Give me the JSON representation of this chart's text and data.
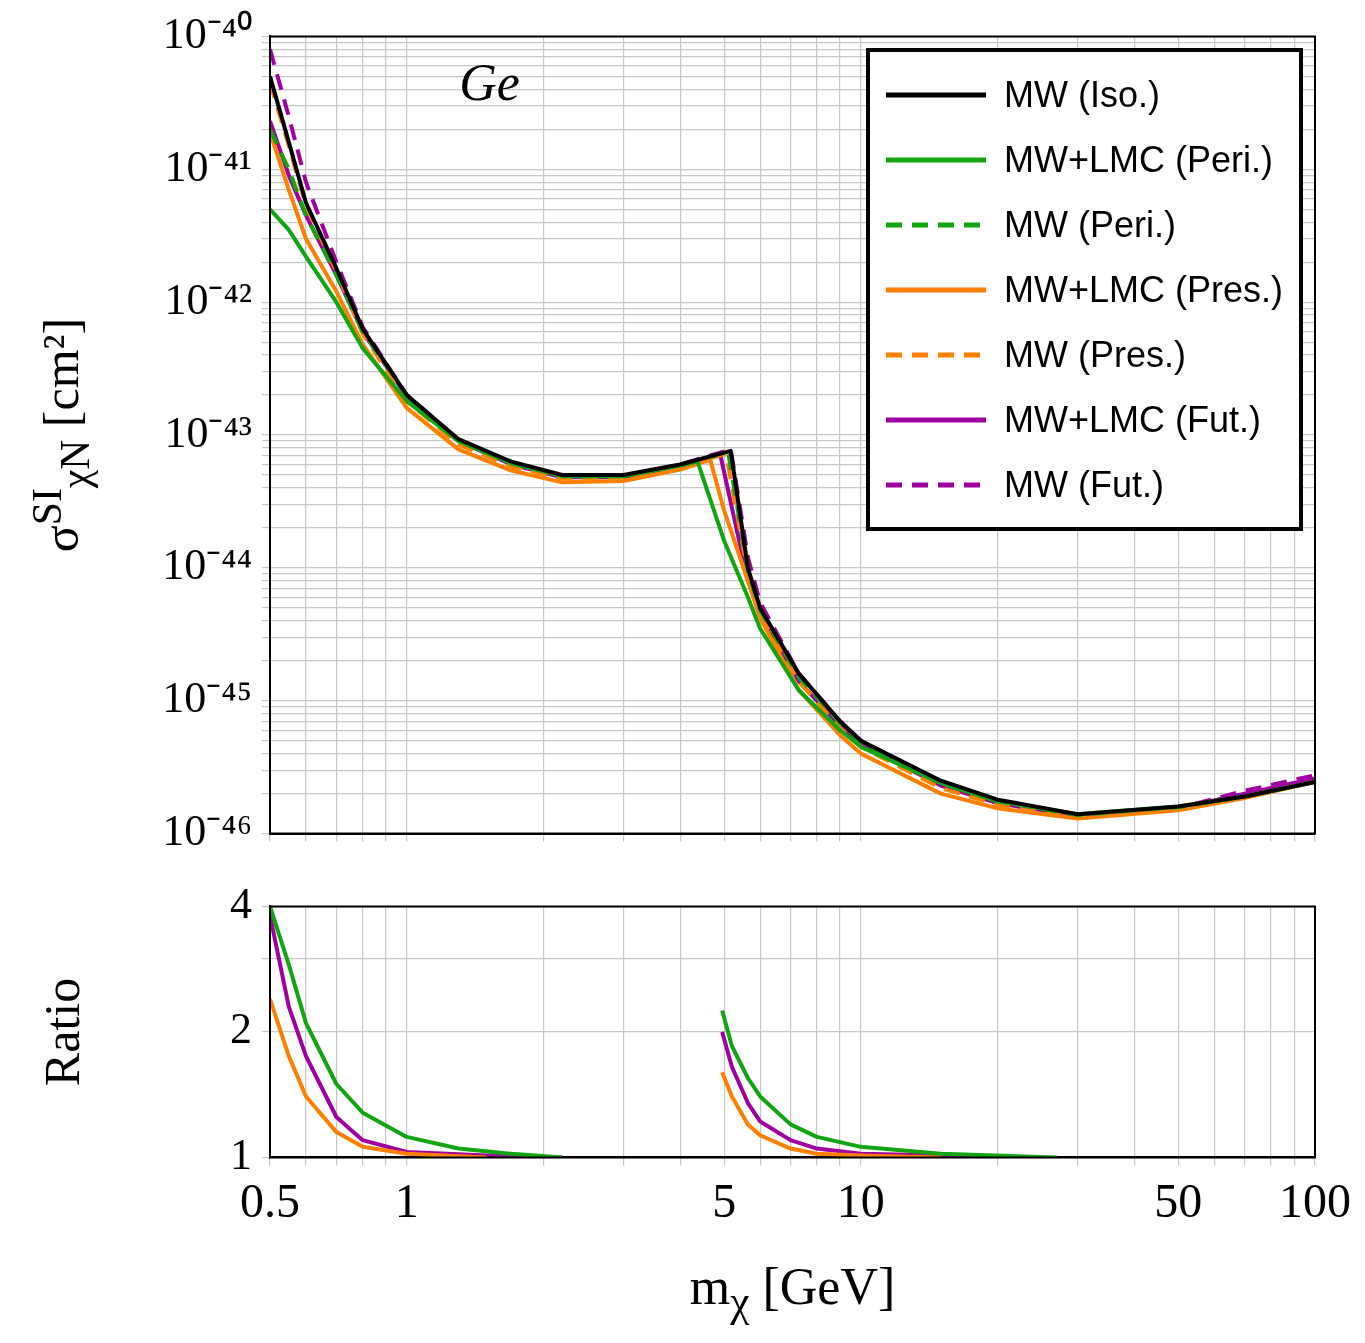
{
  "chart_data": [
    {
      "type": "line",
      "annotations": [
        "Ge"
      ],
      "ylabel": "σ$^{SI}$$_{χN}$ [cm²]",
      "log": "xy",
      "xlim": [
        0.5,
        100
      ],
      "ylim": [
        1e-46,
        1e-40
      ],
      "xticks": [
        0.5,
        {
          "value": 0.6,
          "label": null
        },
        {
          "value": 0.7,
          "label": null
        },
        {
          "value": 0.8,
          "label": null
        },
        {
          "value": 0.9,
          "label": null
        },
        1,
        {
          "value": 2,
          "label": null
        },
        {
          "value": 3,
          "label": null
        },
        {
          "value": 4,
          "label": null
        },
        5,
        {
          "value": 6,
          "label": null
        },
        {
          "value": 7,
          "label": null
        },
        {
          "value": 8,
          "label": null
        },
        {
          "value": 9,
          "label": null
        },
        10,
        {
          "value": 20,
          "label": null
        },
        {
          "value": 30,
          "label": null
        },
        {
          "value": 40,
          "label": null
        },
        50,
        {
          "value": 60,
          "label": null
        },
        {
          "value": 70,
          "label": null
        },
        {
          "value": 80,
          "label": null
        },
        {
          "value": 90,
          "label": null
        },
        100
      ],
      "yticks": [
        {
          "value": 1e-46,
          "label": "10⁻⁴⁶"
        },
        {
          "value": 2e-46,
          "label": null
        },
        {
          "value": 3e-46,
          "label": null
        },
        {
          "value": 4e-46,
          "label": null
        },
        {
          "value": 5e-46,
          "label": null
        },
        {
          "value": 6e-46,
          "label": null
        },
        {
          "value": 7e-46,
          "label": null
        },
        {
          "value": 8e-46,
          "label": null
        },
        {
          "value": 9e-46,
          "label": null
        },
        {
          "value": 1e-45,
          "label": "10⁻⁴⁵"
        },
        {
          "value": 2e-45,
          "label": null
        },
        {
          "value": 3e-45,
          "label": null
        },
        {
          "value": 4e-45,
          "label": null
        },
        {
          "value": 5e-45,
          "label": null
        },
        {
          "value": 6e-45,
          "label": null
        },
        {
          "value": 7e-45,
          "label": null
        },
        {
          "value": 8e-45,
          "label": null
        },
        {
          "value": 9e-45,
          "label": null
        },
        {
          "value": 1e-44,
          "label": "10⁻⁴⁴"
        },
        {
          "value": 2e-44,
          "label": null
        },
        {
          "value": 3e-44,
          "label": null
        },
        {
          "value": 4e-44,
          "label": null
        },
        {
          "value": 5e-44,
          "label": null
        },
        {
          "value": 6e-44,
          "label": null
        },
        {
          "value": 7e-44,
          "label": null
        },
        {
          "value": 8e-44,
          "label": null
        },
        {
          "value": 9e-44,
          "label": null
        },
        {
          "value": 1e-43,
          "label": "10⁻⁴³"
        },
        {
          "value": 2e-43,
          "label": null
        },
        {
          "value": 3e-43,
          "label": null
        },
        {
          "value": 4e-43,
          "label": null
        },
        {
          "value": 5e-43,
          "label": null
        },
        {
          "value": 6e-43,
          "label": null
        },
        {
          "value": 7e-43,
          "label": null
        },
        {
          "value": 8e-43,
          "label": null
        },
        {
          "value": 9e-43,
          "label": null
        },
        {
          "value": 1e-42,
          "label": "10⁻⁴²"
        },
        {
          "value": 2e-42,
          "label": null
        },
        {
          "value": 3e-42,
          "label": null
        },
        {
          "value": 4e-42,
          "label": null
        },
        {
          "value": 5e-42,
          "label": null
        },
        {
          "value": 6e-42,
          "label": null
        },
        {
          "value": 7e-42,
          "label": null
        },
        {
          "value": 8e-42,
          "label": null
        },
        {
          "value": 9e-42,
          "label": null
        },
        {
          "value": 1e-41,
          "label": "10⁻⁴¹"
        },
        {
          "value": 2e-41,
          "label": null
        },
        {
          "value": 3e-41,
          "label": null
        },
        {
          "value": 4e-41,
          "label": null
        },
        {
          "value": 5e-41,
          "label": null
        },
        {
          "value": 6e-41,
          "label": null
        },
        {
          "value": 7e-41,
          "label": null
        },
        {
          "value": 8e-41,
          "label": null
        },
        {
          "value": 9e-41,
          "label": null
        },
        {
          "value": 1e-40,
          "label": "10⁻⁴⁰"
        }
      ],
      "tick_labels": "y",
      "grid": true,
      "legend": "top right",
      "marker": "none",
      "series": [
        {
          "name": "MW (Iso.)",
          "color": "#000000",
          "line_style": "solid",
          "x": [
            0.5,
            0.55,
            0.6,
            0.7,
            0.8,
            1,
            1.3,
            1.7,
            2.2,
            3,
            4,
            5.17,
            5.64,
            6,
            7.3,
            9,
            10,
            15,
            20,
            30,
            50,
            70,
            100
          ],
          "values": [
            5e-41,
            1.6e-41,
            5.6e-42,
            1.8e-42,
            6.3e-43,
            2e-43,
            9.3e-44,
            6.3e-44,
            5e-44,
            5e-44,
            6e-44,
            7.6e-44,
            1e-44,
            5e-45,
            1.6e-45,
            7e-46,
            5e-46,
            2.5e-46,
            1.8e-46,
            1.4e-46,
            1.6e-46,
            1.9e-46,
            2.45e-46
          ]
        },
        {
          "name": "MW+LMC (Peri.)",
          "color": "#12a512",
          "line_style": "solid",
          "x": [
            0.5,
            0.55,
            0.6,
            0.7,
            0.8,
            1,
            1.3,
            1.7,
            2.2,
            3,
            4,
            4.37,
            5,
            5.64,
            6,
            7.3,
            9,
            10,
            15,
            20,
            30,
            50,
            70,
            100
          ],
          "values": [
            5e-42,
            3.5e-42,
            2.2e-42,
            1e-42,
            4.5e-43,
            1.8e-43,
            9e-44,
            6.1e-44,
            4.9e-44,
            4.9e-44,
            5.9e-44,
            6.3e-44,
            1.6e-44,
            6e-45,
            3.5e-45,
            1.2e-45,
            6e-46,
            4.5e-46,
            2.4e-46,
            1.75e-46,
            1.4e-46,
            1.6e-46,
            1.9e-46,
            2.45e-46
          ]
        },
        {
          "name": "MW (Peri.)",
          "color": "#12a512",
          "line_style": "dashed",
          "x": [
            0.5,
            0.55,
            0.6,
            0.7,
            0.8,
            1,
            1.3,
            1.7,
            2.2,
            3,
            4,
            5.1,
            5.64,
            6,
            7.3,
            9,
            10,
            15,
            20,
            30,
            50,
            70,
            100
          ],
          "values": [
            2e-41,
            1e-41,
            4.5e-42,
            1.6e-42,
            6e-43,
            2e-43,
            9.2e-44,
            6.2e-44,
            4.9e-44,
            4.9e-44,
            5.9e-44,
            7.5e-44,
            9.5e-45,
            4.8e-45,
            1.5e-45,
            6.8e-46,
            4.9e-46,
            2.45e-46,
            1.75e-46,
            1.38e-46,
            1.58e-46,
            1.9e-46,
            2.45e-46
          ]
        },
        {
          "name": "MW+LMC (Pres.)",
          "color": "#ff8000",
          "line_style": "solid",
          "x": [
            0.5,
            0.55,
            0.6,
            0.7,
            0.8,
            1,
            1.3,
            1.7,
            2.2,
            3,
            4,
            4.66,
            5,
            5.64,
            6,
            7.3,
            9,
            10,
            15,
            20,
            30,
            50,
            70,
            100
          ],
          "values": [
            1.9e-41,
            7e-42,
            3e-42,
            1.2e-42,
            4.8e-43,
            1.6e-43,
            7.8e-44,
            5.4e-44,
            4.4e-44,
            4.5e-44,
            5.5e-44,
            6.5e-44,
            2.7e-44,
            8e-45,
            4.2e-45,
            1.2e-45,
            5.5e-46,
            4e-46,
            2e-46,
            1.55e-46,
            1.3e-46,
            1.5e-46,
            1.85e-46,
            2.45e-46
          ]
        },
        {
          "name": "MW (Pres.)",
          "color": "#ff8000",
          "line_style": "dashed",
          "x": [
            0.5,
            0.55,
            0.6,
            0.7,
            0.8,
            1,
            1.3,
            1.7,
            2.2,
            3,
            4,
            5.05,
            5.64,
            6,
            7.3,
            9,
            10,
            15,
            20,
            30,
            50,
            70,
            100
          ],
          "values": [
            4.5e-41,
            1.5e-41,
            5.3e-42,
            1.7e-42,
            5.8e-43,
            1.8e-43,
            8.5e-44,
            5.8e-44,
            4.7e-44,
            4.8e-44,
            5.8e-44,
            7.2e-44,
            9e-45,
            4.6e-45,
            1.4e-45,
            6.2e-46,
            4.5e-46,
            2.2e-46,
            1.65e-46,
            1.35e-46,
            1.55e-46,
            1.9e-46,
            2.45e-46
          ]
        },
        {
          "name": "MW+LMC (Fut.)",
          "color": "#a000a0",
          "line_style": "solid",
          "x": [
            0.5,
            0.55,
            0.6,
            0.7,
            0.8,
            1,
            1.3,
            1.7,
            2.2,
            3,
            4,
            4.9,
            5.64,
            6,
            7.3,
            9,
            10,
            15,
            20,
            30,
            50,
            70,
            100
          ],
          "values": [
            2.3e-41,
            9e-42,
            4.5e-42,
            1.6e-42,
            6e-43,
            1.95e-43,
            9e-44,
            6e-44,
            4.8e-44,
            4.8e-44,
            5.9e-44,
            7.2e-44,
            8e-45,
            4.5e-45,
            1.4e-45,
            6.5e-46,
            4.7e-46,
            2.3e-46,
            1.7e-46,
            1.35e-46,
            1.55e-46,
            2e-46,
            2.6e-46
          ]
        },
        {
          "name": "MW (Fut.)",
          "color": "#a000a0",
          "line_style": "dashed",
          "x": [
            0.5,
            0.55,
            0.6,
            0.7,
            0.8,
            1,
            1.3,
            1.7,
            2.2,
            3,
            4,
            5.17,
            5.64,
            6,
            7.3,
            9,
            10,
            15,
            20,
            30,
            50,
            70,
            100
          ],
          "values": [
            8e-41,
            2.5e-41,
            8e-42,
            2e-42,
            6.5e-43,
            2e-43,
            9.2e-44,
            6.2e-44,
            4.9e-44,
            4.9e-44,
            6e-44,
            7.8e-44,
            1.2e-44,
            5.5e-45,
            1.6e-45,
            7e-46,
            5e-46,
            2.4e-46,
            1.7e-46,
            1.35e-46,
            1.55e-46,
            2.1e-46,
            2.75e-46
          ]
        }
      ]
    },
    {
      "type": "line",
      "xlabel": "m$_{χ}$ [GeV]",
      "ylabel": "Ratio",
      "log": "xy",
      "xlim": [
        0.5,
        100
      ],
      "ylim": [
        1,
        4
      ],
      "xticks": [
        0.5,
        {
          "value": 0.6,
          "label": null
        },
        {
          "value": 0.7,
          "label": null
        },
        {
          "value": 0.8,
          "label": null
        },
        {
          "value": 0.9,
          "label": null
        },
        1,
        {
          "value": 2,
          "label": null
        },
        {
          "value": 3,
          "label": null
        },
        {
          "value": 4,
          "label": null
        },
        5,
        {
          "value": 6,
          "label": null
        },
        {
          "value": 7,
          "label": null
        },
        {
          "value": 8,
          "label": null
        },
        {
          "value": 9,
          "label": null
        },
        10,
        {
          "value": 20,
          "label": null
        },
        {
          "value": 30,
          "label": null
        },
        {
          "value": 40,
          "label": null
        },
        50,
        {
          "value": 60,
          "label": null
        },
        {
          "value": 70,
          "label": null
        },
        {
          "value": 80,
          "label": null
        },
        {
          "value": 90,
          "label": null
        },
        100
      ],
      "yticks": [
        1,
        2,
        {
          "value": 3,
          "label": null
        },
        4
      ],
      "grid": true,
      "marker": "none",
      "series": [
        {
          "color": "#12a512",
          "line_style": "solid",
          "x": [
            0.5,
            0.55,
            0.6,
            0.7,
            0.8,
            1,
            1.3,
            1.7,
            2.2,
            3.5,
            4.95,
            5.2,
            5.64,
            6,
            7,
            8,
            10,
            15,
            27
          ],
          "values": [
            4,
            2.9,
            2.1,
            1.5,
            1.28,
            1.12,
            1.05,
            1.02,
            1,
            null,
            2.25,
            1.85,
            1.55,
            1.4,
            1.2,
            1.12,
            1.06,
            1.02,
            1
          ]
        },
        {
          "color": "#ff8000",
          "line_style": "solid",
          "x": [
            0.5,
            0.55,
            0.6,
            0.7,
            0.8,
            1,
            1.5,
            3.5,
            4.95,
            5.2,
            5.64,
            6,
            7,
            8,
            10,
            15
          ],
          "values": [
            2.4,
            1.75,
            1.4,
            1.15,
            1.06,
            1.02,
            1,
            null,
            1.6,
            1.4,
            1.2,
            1.13,
            1.05,
            1.02,
            1.01,
            1
          ]
        },
        {
          "color": "#a000a0",
          "line_style": "solid",
          "x": [
            0.5,
            0.55,
            0.6,
            0.7,
            0.8,
            1,
            1.5,
            2.2,
            3.5,
            4.95,
            5.2,
            5.64,
            6,
            7,
            8,
            10,
            15,
            22
          ],
          "values": [
            3.8,
            2.3,
            1.75,
            1.25,
            1.1,
            1.03,
            1.01,
            1,
            null,
            2,
            1.65,
            1.35,
            1.22,
            1.1,
            1.05,
            1.02,
            1.01,
            1
          ]
        }
      ]
    }
  ]
}
